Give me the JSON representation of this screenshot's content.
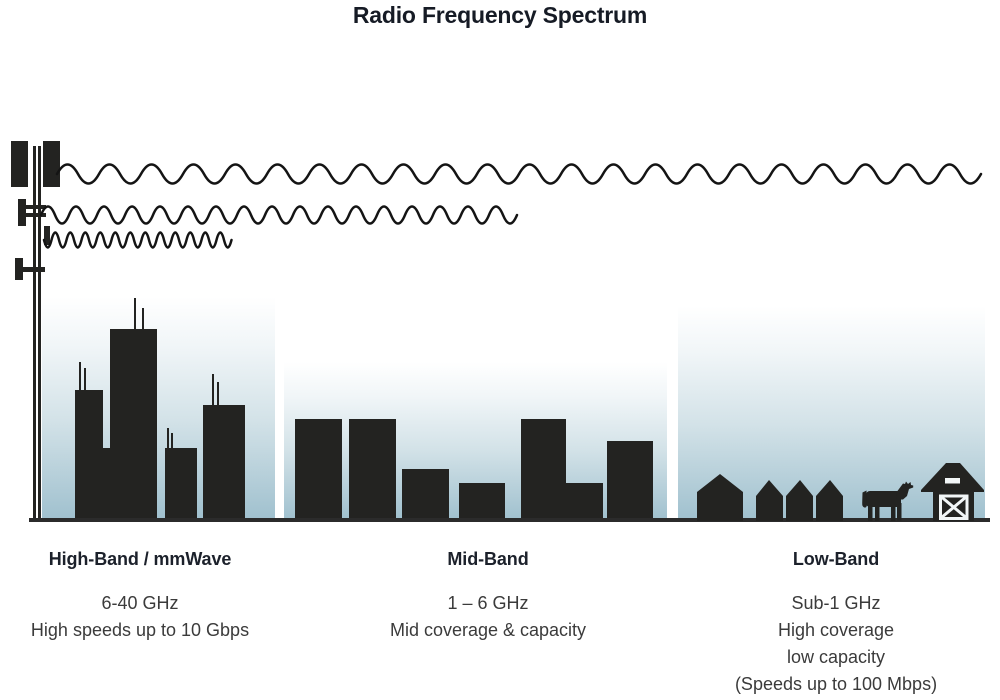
{
  "title": "Radio Frequency Spectrum",
  "diagram": {
    "transmitter": "cell-tower",
    "waves": [
      {
        "name": "low-frequency-wave",
        "wavelength": "long",
        "reach": "longest",
        "band": "Low-Band"
      },
      {
        "name": "mid-frequency-wave",
        "wavelength": "medium",
        "reach": "medium",
        "band": "Mid-Band"
      },
      {
        "name": "high-frequency-wave",
        "wavelength": "short",
        "reach": "shortest",
        "band": "High-Band / mmWave"
      }
    ]
  },
  "bands": [
    {
      "heading": "High-Band / mmWave",
      "lines": [
        "6-40 GHz",
        "High speeds up to 10 Gbps"
      ],
      "scene": "city-skyscrapers-with-antennas"
    },
    {
      "heading": "Mid-Band",
      "lines": [
        "1 – 6 GHz",
        "Mid coverage & capacity"
      ],
      "scene": "mid-rise-buildings"
    },
    {
      "heading": "Low-Band",
      "lines": [
        "Sub-1 GHz",
        "High coverage",
        "low capacity",
        "(Speeds up to 100 Mbps)"
      ],
      "scene": "rural-houses-cow-barn"
    }
  ],
  "colors": {
    "silhouette": "#232321",
    "sky_gradient_bottom": "#9fc0ce",
    "heading_text": "#1c212b",
    "body_text": "#3b3b3b",
    "title_text": "#161b25"
  }
}
